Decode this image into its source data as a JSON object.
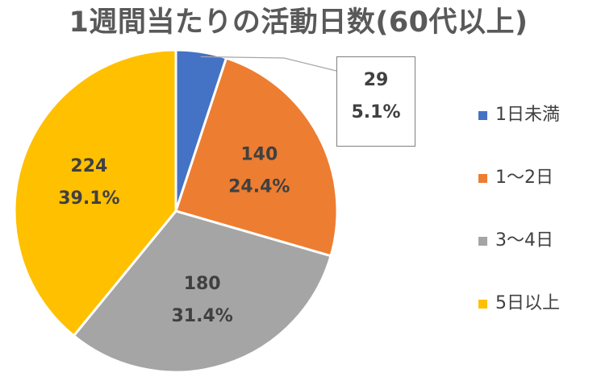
{
  "chart_data": {
    "type": "pie",
    "title": "1週間当たりの活動日数(60代以上)",
    "categories": [
      "1日未満",
      "1～2日",
      "3～4日",
      "5日以上"
    ],
    "values": [
      29,
      140,
      180,
      224
    ],
    "percent_labels": [
      "5.1%",
      "24.4%",
      "31.4%",
      "39.1%"
    ],
    "colors": [
      "#4472C4",
      "#ED7D31",
      "#A5A5A5",
      "#FFC000"
    ],
    "start_angle_deg": 0,
    "direction": "clockwise",
    "legend_position": "right"
  }
}
